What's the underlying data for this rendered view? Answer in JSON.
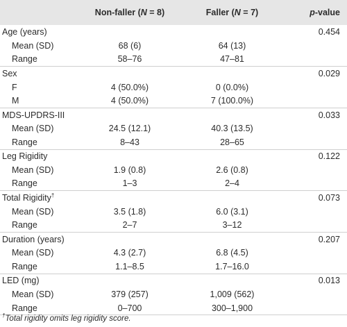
{
  "header": {
    "col1_text": "Non-faller (",
    "col1_n": "N",
    "col1_eq": " = 8)",
    "col2_text": "Faller (",
    "col2_n": "N",
    "col2_eq": " = 7)",
    "col3_p": "p",
    "col3_rest": "-value"
  },
  "rows": {
    "age": {
      "label": "Age (years)",
      "p": "0.454"
    },
    "age_mean": {
      "label": "Mean (SD)",
      "nf": "68 (6)",
      "f": "64 (13)"
    },
    "age_range": {
      "label": "Range",
      "nf": "58–76",
      "f": "47–81"
    },
    "sex": {
      "label": "Sex",
      "p": "0.029"
    },
    "sex_f": {
      "label": "F",
      "nf": "4 (50.0%)",
      "f": "0 (0.0%)"
    },
    "sex_m": {
      "label": "M",
      "nf": "4 (50.0%)",
      "f": "7 (100.0%)"
    },
    "mds": {
      "label": "MDS-UPDRS-III",
      "p": "0.033"
    },
    "mds_mean": {
      "label": "Mean (SD)",
      "nf": "24.5 (12.1)",
      "f": "40.3 (13.5)"
    },
    "mds_range": {
      "label": "Range",
      "nf": "8–43",
      "f": "28–65"
    },
    "leg": {
      "label": "Leg Rigidity",
      "p": "0.122"
    },
    "leg_mean": {
      "label": "Mean (SD)",
      "nf": "1.9 (0.8)",
      "f": "2.6 (0.8)"
    },
    "leg_range": {
      "label": "Range",
      "nf": "1–3",
      "f": "2–4"
    },
    "tot": {
      "label": "Total Rigidity",
      "sup": "†",
      "p": "0.073"
    },
    "tot_mean": {
      "label": "Mean (SD)",
      "nf": "3.5 (1.8)",
      "f": "6.0 (3.1)"
    },
    "tot_range": {
      "label": "Range",
      "nf": "2–7",
      "f": "3–12"
    },
    "dur": {
      "label": "Duration (years)",
      "p": "0.207"
    },
    "dur_mean": {
      "label": "Mean (SD)",
      "nf": "4.3 (2.7)",
      "f": "6.8 (4.5)"
    },
    "dur_range": {
      "label": "Range",
      "nf": "1.1–8.5",
      "f": "1.7–16.0"
    },
    "led": {
      "label": "LED (mg)",
      "p": "0.013"
    },
    "led_mean": {
      "label": "Mean (SD)",
      "nf": "379 (257)",
      "f": "1,009 (562)"
    },
    "led_range": {
      "label": "Range",
      "nf": "0–700",
      "f": "300–1,900"
    }
  },
  "footnote": {
    "mark": "†",
    "text": "Total rigidity omits leg rigidity score."
  }
}
